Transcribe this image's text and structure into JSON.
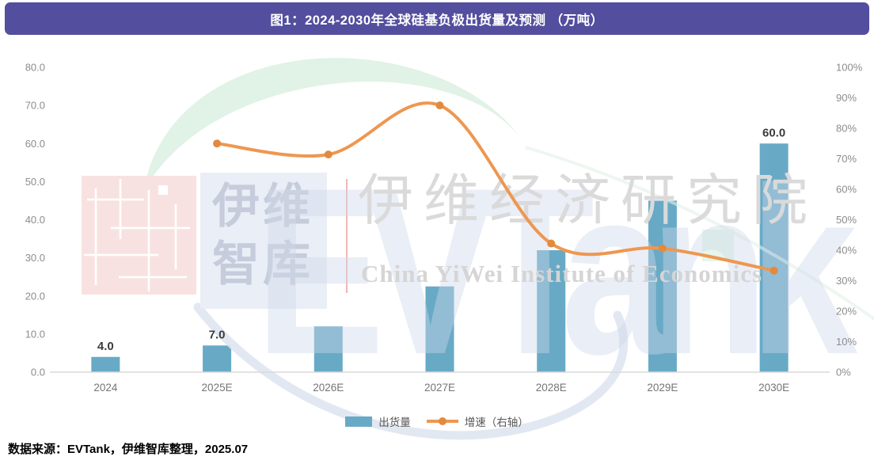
{
  "header": {
    "title": "图1：2024-2030年全球硅基负极出货量及预测 （万吨）"
  },
  "legend": {
    "bar_label": "出货量",
    "line_label": "增速（右轴）"
  },
  "source_note": "数据来源：EVTank，伊维智库整理，2025.07",
  "watermark": {
    "logo_line1": "伊维",
    "logo_line2": "智库",
    "evtank": "EVTank",
    "cn_large": "伊维经济研究院",
    "en_large": "China YiWei Institute of Economics"
  },
  "colors": {
    "header_bg": "#534e9e",
    "header_text": "#ffffff",
    "bar": "#68aac6",
    "line": "#ee9750",
    "marker": "#e28a3e",
    "axis_line": "#d9d9d9",
    "tick_text": "#8c8c8c",
    "x_label_text": "#757575",
    "data_label_text": "#3c3c3c"
  },
  "chart_data": {
    "type": "bar",
    "subtype": "combo bar + line (dual axis)",
    "title": "图1：2024-2030年全球硅基负极出货量及预测 （万吨）",
    "categories": [
      "2024",
      "2025E",
      "2026E",
      "2027E",
      "2028E",
      "2029E",
      "2030E"
    ],
    "series": [
      {
        "name": "出货量",
        "type": "bar",
        "yaxis": "left",
        "unit": "万吨",
        "values": [
          4.0,
          7.0,
          12.0,
          22.5,
          32.0,
          45.0,
          60.0
        ],
        "data_labels": {
          "0": "4.0",
          "1": "7.0",
          "6": "60.0"
        }
      },
      {
        "name": "增速（右轴）",
        "type": "line",
        "yaxis": "right",
        "unit": "%",
        "values": [
          null,
          75,
          71.4,
          87.5,
          42.2,
          40.6,
          33.3
        ]
      }
    ],
    "left_axis": {
      "min": 0,
      "max": 80,
      "ticks": [
        "0.0",
        "10.0",
        "20.0",
        "30.0",
        "40.0",
        "50.0",
        "60.0",
        "70.0",
        "80.0"
      ]
    },
    "right_axis": {
      "min": 0,
      "max": 100,
      "ticks": [
        "0%",
        "10%",
        "20%",
        "30%",
        "40%",
        "50%",
        "60%",
        "70%",
        "80%",
        "90%",
        "100%"
      ]
    },
    "grid": false,
    "legend_position": "bottom"
  }
}
